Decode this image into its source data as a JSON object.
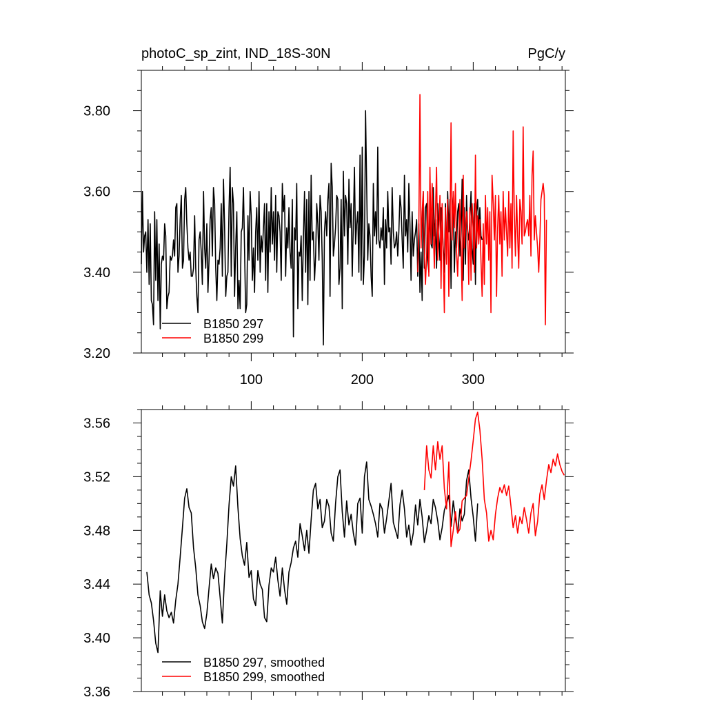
{
  "chart_data": [
    {
      "type": "line",
      "title_left": "photoC_sp_zint, IND_18S-30N",
      "title_right": "PgC/y",
      "xlabel": "",
      "ylabel": "",
      "xlim": [
        1,
        383
      ],
      "ylim": [
        3.2,
        3.9
      ],
      "x_ticks": [
        100,
        200,
        300
      ],
      "x_tick_labels": [
        "100",
        "200",
        "300"
      ],
      "y_ticks": [
        3.2,
        3.4,
        3.6,
        3.8
      ],
      "y_tick_labels": [
        "3.20",
        "3.40",
        "3.60",
        "3.80"
      ],
      "grid": false,
      "legend_position": "bottom-left",
      "series": [
        {
          "name": "B1850 297",
          "color": "#000000",
          "x_start": 1,
          "values": [
            3.42,
            3.6,
            3.45,
            3.49,
            3.5,
            3.4,
            3.53,
            3.37,
            3.52,
            3.33,
            3.32,
            3.27,
            3.55,
            3.38,
            3.53,
            3.33,
            3.47,
            3.26,
            3.42,
            3.44,
            3.43,
            3.52,
            3.49,
            3.31,
            3.34,
            3.35,
            3.44,
            3.43,
            3.44,
            3.48,
            3.44,
            3.56,
            3.57,
            3.4,
            3.44,
            3.53,
            3.59,
            3.41,
            3.43,
            3.58,
            3.61,
            3.52,
            3.46,
            3.43,
            3.45,
            3.39,
            3.39,
            3.41,
            3.54,
            3.41,
            3.34,
            3.3,
            3.48,
            3.5,
            3.45,
            3.37,
            3.6,
            3.46,
            3.41,
            3.52,
            3.35,
            3.43,
            3.53,
            3.56,
            3.44,
            3.61,
            3.57,
            3.41,
            3.33,
            3.43,
            3.42,
            3.46,
            3.57,
            3.39,
            3.63,
            3.52,
            3.34,
            3.39,
            3.4,
            3.56,
            3.66,
            3.39,
            3.61,
            3.57,
            3.34,
            3.46,
            3.55,
            3.31,
            3.38,
            3.31,
            3.5,
            3.51,
            3.61,
            3.46,
            3.3,
            3.32,
            3.54,
            3.43,
            3.6,
            3.54,
            3.38,
            3.46,
            3.35,
            3.5,
            3.56,
            3.43,
            3.6,
            3.4,
            3.49,
            3.45,
            3.51,
            3.57,
            3.38,
            3.57,
            3.35,
            3.55,
            3.45,
            3.61,
            3.47,
            3.55,
            3.43,
            3.59,
            3.4,
            3.55,
            3.54,
            3.5,
            3.38,
            3.62,
            3.55,
            3.59,
            3.39,
            3.51,
            3.46,
            3.56,
            3.45,
            3.41,
            3.58,
            3.24,
            3.51,
            3.48,
            3.62,
            3.31,
            3.45,
            3.44,
            3.49,
            3.33,
            3.49,
            3.6,
            3.4,
            3.58,
            3.32,
            3.6,
            3.38,
            3.64,
            3.48,
            3.5,
            3.38,
            3.44,
            3.57,
            3.52,
            3.43,
            3.59,
            3.55,
            3.43,
            3.22,
            3.5,
            3.55,
            3.49,
            3.58,
            3.62,
            3.34,
            3.67,
            3.61,
            3.44,
            3.47,
            3.51,
            3.59,
            3.58,
            3.37,
            3.41,
            3.58,
            3.31,
            3.65,
            3.49,
            3.59,
            3.57,
            3.42,
            3.63,
            3.51,
            3.57,
            3.39,
            3.52,
            3.66,
            3.47,
            3.52,
            3.55,
            3.4,
            3.69,
            3.38,
            3.71,
            3.37,
            3.44,
            3.8,
            3.62,
            3.43,
            3.52,
            3.49,
            3.39,
            3.34,
            3.62,
            3.49,
            3.55,
            3.47,
            3.71,
            3.48,
            3.46,
            3.51,
            3.48,
            3.56,
            3.37,
            3.53,
            3.46,
            3.6,
            3.5,
            3.51,
            3.42,
            3.61,
            3.5,
            3.46,
            3.47,
            3.5,
            3.44,
            3.5,
            3.59,
            3.56,
            3.48,
            3.41,
            3.64,
            3.49,
            3.53,
            3.45,
            3.62,
            3.52,
            3.38,
            3.55,
            3.44,
            3.48,
            3.5,
            3.53,
            3.39,
            3.52,
            3.35,
            3.45,
            3.33,
            3.6,
            3.41,
            3.56,
            3.57,
            3.43,
            3.4,
            3.57,
            3.47,
            3.46,
            3.61,
            3.49,
            3.53,
            3.41,
            3.57,
            3.49,
            3.43,
            3.56,
            3.52,
            3.46,
            3.4,
            3.57,
            3.43,
            3.6,
            3.5,
            3.58,
            3.36,
            3.55,
            3.59,
            3.4,
            3.5,
            3.46,
            3.55,
            3.57,
            3.44,
            3.49,
            3.63,
            3.38,
            3.56,
            3.42,
            3.59,
            3.5,
            3.48,
            3.53,
            3.6,
            3.46,
            3.42,
            3.57,
            3.37,
            3.55,
            3.58,
            3.5,
            3.56,
            3.49,
            3.48
          ]
        },
        {
          "name": "B1850 299",
          "color": "#ff0000",
          "x_start": 250,
          "values": [
            3.4,
            3.51,
            3.84,
            3.46,
            3.55,
            3.6,
            3.45,
            3.37,
            3.44,
            3.6,
            3.39,
            3.66,
            3.47,
            3.62,
            3.51,
            3.41,
            3.55,
            3.66,
            3.43,
            3.51,
            3.59,
            3.36,
            3.57,
            3.44,
            3.3,
            3.56,
            3.42,
            3.58,
            3.34,
            3.49,
            3.77,
            3.48,
            3.6,
            3.51,
            3.62,
            3.45,
            3.39,
            3.48,
            3.58,
            3.47,
            3.33,
            3.64,
            3.46,
            3.51,
            3.55,
            3.5,
            3.37,
            3.56,
            3.38,
            3.57,
            3.51,
            3.4,
            3.69,
            3.46,
            3.54,
            3.47,
            3.53,
            3.43,
            3.34,
            3.52,
            3.37,
            3.59,
            3.47,
            3.56,
            3.43,
            3.55,
            3.3,
            3.64,
            3.57,
            3.48,
            3.59,
            3.34,
            3.51,
            3.59,
            3.47,
            3.55,
            3.39,
            3.6,
            3.48,
            3.56,
            3.5,
            3.44,
            3.6,
            3.46,
            3.57,
            3.41,
            3.75,
            3.55,
            3.44,
            3.59,
            3.49,
            3.41,
            3.58,
            3.55,
            3.47,
            3.76,
            3.49,
            3.5,
            3.52,
            3.53,
            3.49,
            3.59,
            3.44,
            3.64,
            3.7,
            3.48,
            3.54,
            3.5,
            3.46,
            3.4,
            3.48,
            3.58,
            3.6,
            3.62,
            3.59,
            3.27,
            3.53
          ]
        }
      ]
    },
    {
      "type": "line",
      "title_left": "",
      "title_right": "",
      "xlabel": "",
      "ylabel": "",
      "xlim": [
        1,
        383
      ],
      "ylim": [
        3.36,
        3.57
      ],
      "x_ticks": [
        100,
        200,
        300
      ],
      "y_ticks": [
        3.36,
        3.4,
        3.44,
        3.48,
        3.52,
        3.56
      ],
      "y_tick_labels": [
        "3.36",
        "3.40",
        "3.44",
        "3.48",
        "3.52",
        "3.56"
      ],
      "grid": false,
      "legend_position": "bottom-left",
      "series": [
        {
          "name": "B1850 297, smoothed",
          "color": "#000000",
          "x": [
            6,
            8,
            10,
            12,
            14,
            16,
            18,
            20,
            22,
            24,
            26,
            28,
            30,
            32,
            34,
            36,
            38,
            40,
            42,
            44,
            46,
            48,
            50,
            52,
            54,
            56,
            58,
            60,
            62,
            64,
            66,
            68,
            70,
            72,
            74,
            76,
            78,
            80,
            82,
            84,
            86,
            88,
            90,
            92,
            94,
            96,
            98,
            100,
            102,
            104,
            106,
            108,
            110,
            112,
            114,
            116,
            118,
            120,
            122,
            124,
            126,
            128,
            130,
            132,
            134,
            136,
            138,
            140,
            142,
            144,
            146,
            148,
            150,
            152,
            154,
            156,
            158,
            160,
            162,
            164,
            166,
            168,
            170,
            172,
            174,
            176,
            178,
            180,
            182,
            184,
            186,
            188,
            190,
            192,
            194,
            196,
            198,
            200,
            202,
            204,
            206,
            208,
            210,
            212,
            214,
            216,
            218,
            220,
            222,
            224,
            226,
            228,
            230,
            232,
            234,
            236,
            238,
            240,
            242,
            244,
            246,
            248,
            250,
            252,
            254,
            256,
            258,
            260,
            262,
            264,
            266,
            268,
            270,
            272,
            274,
            276,
            278,
            280,
            282,
            284,
            286,
            288,
            290,
            292,
            294,
            296,
            298,
            300,
            302,
            304
          ],
          "y": [
            3.449,
            3.432,
            3.426,
            3.413,
            3.396,
            3.389,
            3.435,
            3.416,
            3.432,
            3.42,
            3.415,
            3.419,
            3.411,
            3.428,
            3.44,
            3.46,
            3.482,
            3.504,
            3.511,
            3.497,
            3.493,
            3.467,
            3.452,
            3.432,
            3.424,
            3.412,
            3.407,
            3.418,
            3.437,
            3.455,
            3.444,
            3.452,
            3.448,
            3.43,
            3.411,
            3.445,
            3.47,
            3.499,
            3.52,
            3.513,
            3.528,
            3.497,
            3.474,
            3.461,
            3.454,
            3.471,
            3.445,
            3.45,
            3.429,
            3.424,
            3.45,
            3.44,
            3.436,
            3.415,
            3.412,
            3.439,
            3.452,
            3.449,
            3.46,
            3.443,
            3.431,
            3.452,
            3.436,
            3.425,
            3.449,
            3.456,
            3.467,
            3.472,
            3.46,
            3.485,
            3.476,
            3.465,
            3.48,
            3.463,
            3.488,
            3.51,
            3.515,
            3.496,
            3.503,
            3.482,
            3.487,
            3.503,
            3.498,
            3.478,
            3.472,
            3.5,
            3.52,
            3.525,
            3.494,
            3.475,
            3.502,
            3.484,
            3.492,
            3.478,
            3.469,
            3.5,
            3.504,
            3.478,
            3.52,
            3.531,
            3.503,
            3.498,
            3.492,
            3.485,
            3.475,
            3.5,
            3.496,
            3.478,
            3.489,
            3.502,
            3.515,
            3.486,
            3.48,
            3.474,
            3.499,
            3.51,
            3.496,
            3.475,
            3.484,
            3.469,
            3.478,
            3.499,
            3.484,
            3.503,
            3.49,
            3.471,
            3.48,
            3.491,
            3.485,
            3.503,
            3.497,
            3.487,
            3.473,
            3.482,
            3.495,
            3.5,
            3.506,
            3.483,
            3.502,
            3.489,
            3.478,
            3.496,
            3.487,
            3.492,
            3.517,
            3.525,
            3.504,
            3.49,
            3.472,
            3.5
          ]
        },
        {
          "name": "B1850 299, smoothed",
          "color": "#ff0000",
          "x": [
            256,
            258,
            260,
            262,
            264,
            266,
            268,
            270,
            272,
            274,
            276,
            278,
            280,
            282,
            284,
            286,
            288,
            290,
            292,
            294,
            296,
            298,
            300,
            302,
            304,
            306,
            308,
            310,
            312,
            314,
            316,
            318,
            320,
            322,
            324,
            326,
            328,
            330,
            332,
            334,
            336,
            338,
            340,
            342,
            344,
            346,
            348,
            350,
            352,
            354,
            356,
            358,
            360,
            362,
            364,
            366,
            368,
            370,
            372,
            374,
            376,
            378,
            380,
            382
          ],
          "y": [
            3.51,
            3.543,
            3.525,
            3.519,
            3.543,
            3.525,
            3.546,
            3.533,
            3.543,
            3.511,
            3.496,
            3.531,
            3.468,
            3.48,
            3.494,
            3.478,
            3.481,
            3.502,
            3.504,
            3.506,
            3.519,
            3.532,
            3.547,
            3.563,
            3.568,
            3.555,
            3.533,
            3.503,
            3.493,
            3.472,
            3.48,
            3.473,
            3.492,
            3.504,
            3.512,
            3.508,
            3.514,
            3.506,
            3.513,
            3.498,
            3.482,
            3.491,
            3.478,
            3.49,
            3.485,
            3.497,
            3.488,
            3.478,
            3.493,
            3.5,
            3.476,
            3.487,
            3.507,
            3.514,
            3.503,
            3.517,
            3.529,
            3.523,
            3.533,
            3.528,
            3.537,
            3.529,
            3.524,
            3.521
          ]
        }
      ]
    }
  ]
}
